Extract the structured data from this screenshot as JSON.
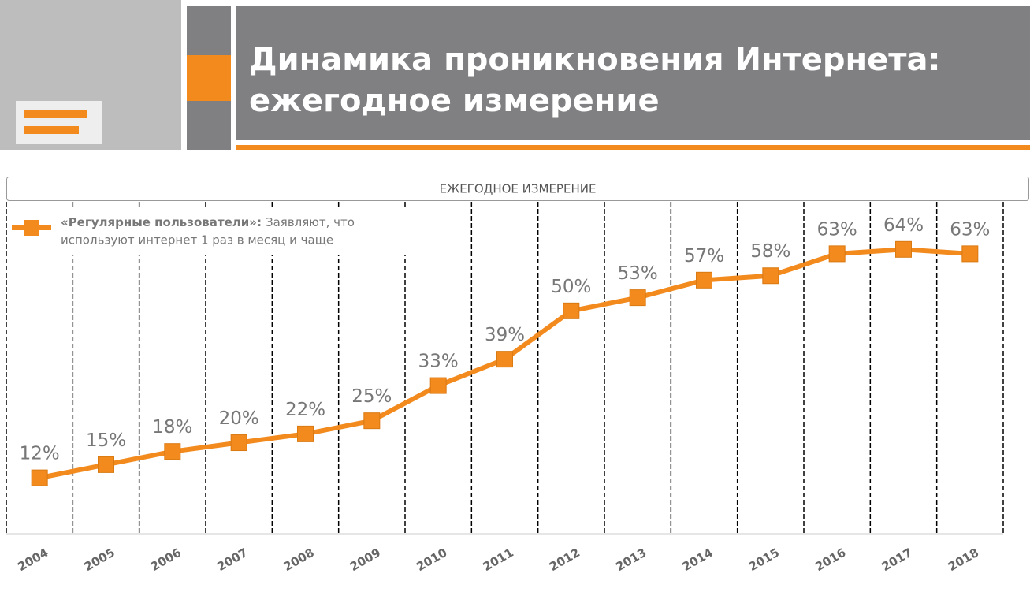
{
  "header": {
    "title_lines": [
      "Динамика проникновения Интернета:",
      "ежегодное измерение"
    ]
  },
  "chart_data": {
    "type": "line",
    "subtitle": "ЕЖЕГОДНОЕ ИЗМЕРЕНИЕ",
    "categories": [
      "2004",
      "2005",
      "2006",
      "2007",
      "2008",
      "2009",
      "2010",
      "2011",
      "2012",
      "2013",
      "2014",
      "2015",
      "2016",
      "2017",
      "2018"
    ],
    "series": [
      {
        "name": "«Регулярные пользователи»:",
        "description_lines": [
          "Заявляют, что",
          "используют интернет 1 раз в месяц и чаще"
        ],
        "color": "#f28a1e",
        "values": [
          12,
          15,
          18,
          20,
          22,
          25,
          33,
          39,
          50,
          53,
          57,
          58,
          63,
          64,
          63
        ],
        "value_labels": [
          "12%",
          "15%",
          "18%",
          "20%",
          "22%",
          "25%",
          "33%",
          "39%",
          "50%",
          "53%",
          "57%",
          "58%",
          "63%",
          "64%",
          "63%"
        ]
      }
    ],
    "ylim": [
      0,
      75
    ]
  }
}
